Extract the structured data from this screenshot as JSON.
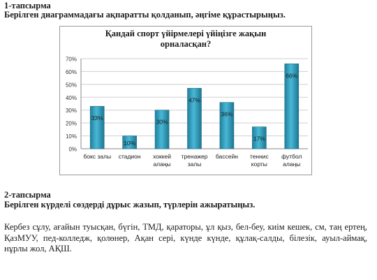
{
  "task1": {
    "title": "1-тапсырма",
    "subtitle": "Берілген диаграммадағы ақпаратты қолданып, әңгіме құрастырыңыз."
  },
  "chart_data": {
    "type": "bar",
    "title_lines": [
      "Қандай спорт үйірмелері үйіңізге жақын",
      "орналасқан?"
    ],
    "categories": [
      [
        "бокс залы"
      ],
      [
        "стадион"
      ],
      [
        "хоккей",
        "алаңы"
      ],
      [
        "тренажер",
        "залы"
      ],
      [
        "бассейн"
      ],
      [
        "теннис",
        "корты"
      ],
      [
        "футбол",
        "алаңы"
      ]
    ],
    "values": [
      33,
      10,
      30,
      47,
      36,
      17,
      66
    ],
    "data_labels": [
      "33%",
      "10%",
      "30%",
      "47%",
      "36%",
      "17%",
      "66%"
    ],
    "y_ticks": [
      "0%",
      "10%",
      "20%",
      "30%",
      "40%",
      "50%",
      "60%",
      "70%"
    ],
    "ylim": [
      0,
      70
    ],
    "grid": true,
    "legend": "none",
    "bar_color": "#3aa6c4"
  },
  "task2": {
    "title": "2-тапсырма",
    "subtitle": "Берілген күрделі сөздерді дұрыс жазып, түрлерін ажыратыңыз.",
    "body": "Кербез сұлу, ағайын туысқан, бүгін, ТМД, қараторы, ұл қыз, бел-беу, киім кешек, см, таң ертең, ҚазМУУ, пед-колледж, қолөнер, Ақан сері, күнде күнде, құлақ-салды, білезік, ауыл-аймақ, нұрлы жол, АҚШ."
  }
}
